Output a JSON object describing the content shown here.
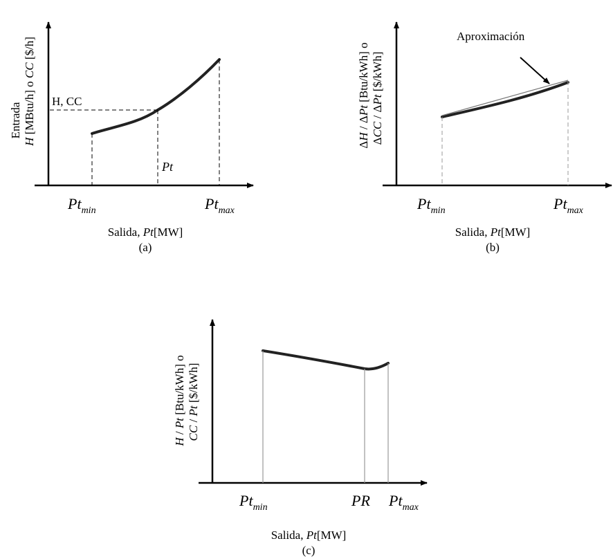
{
  "panel_a": {
    "ylabel_line1": "Entrada",
    "ylabel_line2": {
      "v1": "H",
      "u1": " [MBtu/h] o ",
      "v2": "CC",
      "u2": " [$/h]"
    },
    "point_label": "H, CC",
    "pt_label": "Pt",
    "xtick_min": {
      "base": "Pt",
      "sub": "min"
    },
    "xtick_max": {
      "base": "Pt",
      "sub": "max"
    },
    "xlabel": {
      "prefix": "Salida, ",
      "var": "Pt",
      "unit": "[MW]"
    },
    "caption": "(a)"
  },
  "panel_b": {
    "ylabel_line1": {
      "d1": "Δ",
      "v1": "H",
      "s1": " / ",
      "d2": "Δ",
      "v2": "Pt",
      "u": " [Btu/kWh] o"
    },
    "ylabel_line2": {
      "d1": "Δ",
      "v1": "CC",
      "s1": " / ",
      "d2": "Δ",
      "v2": "Pt",
      "u": " [$/kWh]"
    },
    "annotation": "Aproximación",
    "xtick_min": {
      "base": "Pt",
      "sub": "min"
    },
    "xtick_max": {
      "base": "Pt",
      "sub": "max"
    },
    "xlabel": {
      "prefix": "Salida, ",
      "var": "Pt",
      "unit": "[MW]"
    },
    "caption": "(b)"
  },
  "panel_c": {
    "ylabel_line1": {
      "v1": "H",
      "s": " / ",
      "v2": "Pt",
      "u": " [Btu/kWh] o"
    },
    "ylabel_line2": {
      "v1": "CC",
      "s": " / ",
      "v2": "Pt",
      "u": " [$/kWh]"
    },
    "xtick_min": {
      "base": "Pt",
      "sub": "min"
    },
    "xtick_pr": "PR",
    "xtick_max": {
      "base": "Pt",
      "sub": "max"
    },
    "xlabel": {
      "prefix": "Salida, ",
      "var": "Pt",
      "unit": "[MW]"
    },
    "caption": "(c)"
  }
}
